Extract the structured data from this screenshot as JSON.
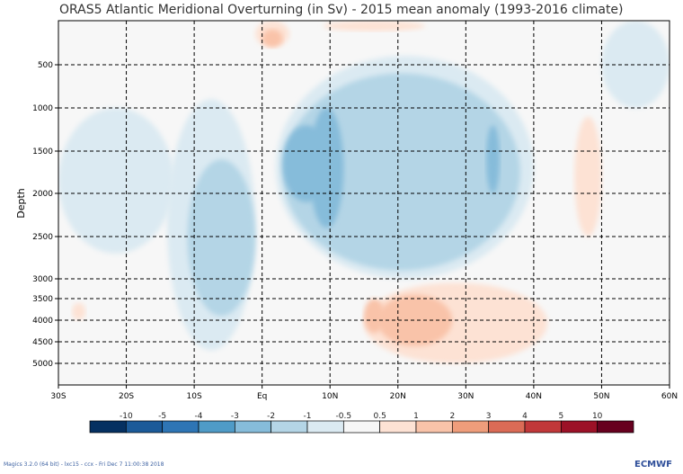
{
  "chart_data": {
    "type": "heatmap",
    "title": "ORAS5 Atlantic Meridional Overturning (in Sv) - 2015 mean anomaly (1993-2016 climate)",
    "xlabel": "",
    "ylabel": "Depth",
    "xlim": [
      -30,
      60
    ],
    "ylim": [
      0,
      5500
    ],
    "x_ticks": [
      {
        "v": -30,
        "label": "30S"
      },
      {
        "v": -20,
        "label": "20S"
      },
      {
        "v": -10,
        "label": "10S"
      },
      {
        "v": 0,
        "label": "Eq"
      },
      {
        "v": 10,
        "label": "10N"
      },
      {
        "v": 20,
        "label": "20N"
      },
      {
        "v": 30,
        "label": "30N"
      },
      {
        "v": 40,
        "label": "40N"
      },
      {
        "v": 50,
        "label": "50N"
      },
      {
        "v": 60,
        "label": "60N"
      }
    ],
    "y_ticks": [
      500,
      1000,
      1500,
      2000,
      2500,
      3000,
      3500,
      4000,
      4500,
      5000
    ],
    "grid": true,
    "levels": [
      "-10",
      "-5",
      "-4",
      "-3",
      "-2",
      "-1",
      "-0.5",
      "0.5",
      "1",
      "2",
      "3",
      "4",
      "5",
      "10"
    ],
    "colors": [
      "#053061",
      "#1b5a99",
      "#2e75b5",
      "#4f9bc7",
      "#86bcda",
      "#b4d5e6",
      "#dbeaf2",
      "#f7f7f7",
      "#fde2d4",
      "#f9c3a9",
      "#ef9d7b",
      "#db6b56",
      "#c13839",
      "#9c1127",
      "#67001f"
    ],
    "regions": [
      {
        "lat": [
          -30,
          -13
        ],
        "depth": [
          1000,
          2700
        ],
        "value": -0.7
      },
      {
        "lat": [
          -14,
          -1
        ],
        "depth": [
          900,
          4700
        ],
        "value": -0.7
      },
      {
        "lat": [
          2,
          40
        ],
        "depth": [
          400,
          3000
        ],
        "value": -0.7
      },
      {
        "lat": [
          50,
          60
        ],
        "depth": [
          0,
          1000
        ],
        "value": -0.7
      },
      {
        "lat": [
          -11,
          -1
        ],
        "depth": [
          1600,
          3900
        ],
        "value": -1.5
      },
      {
        "lat": [
          3,
          38
        ],
        "depth": [
          600,
          2900
        ],
        "value": -1.5
      },
      {
        "lat": [
          3,
          10
        ],
        "depth": [
          1200,
          2100
        ],
        "value": -2.5
      },
      {
        "lat": [
          7,
          12
        ],
        "depth": [
          1000,
          2400
        ],
        "value": -2.5
      },
      {
        "lat": [
          33,
          35
        ],
        "depth": [
          1200,
          2000
        ],
        "value": -2.5
      },
      {
        "lat": [
          15,
          42
        ],
        "depth": [
          3100,
          5000
        ],
        "value": 0.7
      },
      {
        "lat": [
          46,
          50
        ],
        "depth": [
          1100,
          2500
        ],
        "value": 0.7
      },
      {
        "lat": [
          -28,
          -26
        ],
        "depth": [
          3600,
          4000
        ],
        "value": 0.7
      },
      {
        "lat": [
          -1,
          4
        ],
        "depth": [
          0,
          300
        ],
        "value": 0.7
      },
      {
        "lat": [
          9,
          24
        ],
        "depth": [
          0,
          120
        ],
        "value": 0.7
      },
      {
        "lat": [
          17,
          28
        ],
        "depth": [
          3400,
          4600
        ],
        "value": 1.5
      },
      {
        "lat": [
          15,
          18
        ],
        "depth": [
          3500,
          4300
        ],
        "value": 1.5
      },
      {
        "lat": [
          0,
          3
        ],
        "depth": [
          100,
          300
        ],
        "value": 1.5
      }
    ]
  },
  "footer": "Magics 3.2.0 (64 bit) - lxc15 - ccx - Fri Dec  7 11:00:38 2018",
  "logo": "ECMWF"
}
